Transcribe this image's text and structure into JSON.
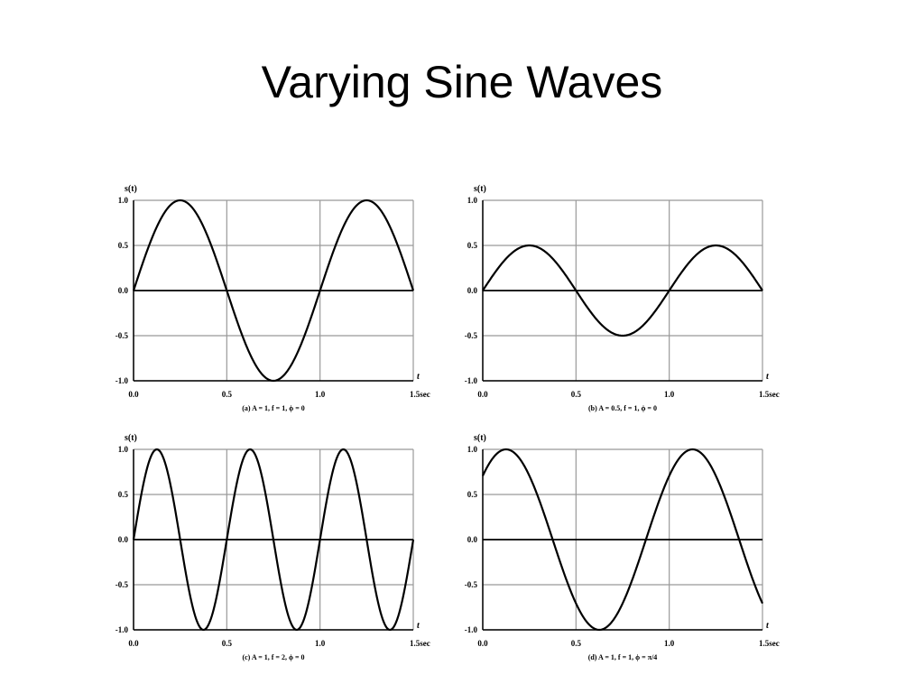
{
  "slide": {
    "title": "Varying Sine Waves"
  },
  "chart_data": [
    {
      "type": "line",
      "title": "",
      "caption": "(a) A = 1, f = 1, ϕ = 0",
      "ylabel": "s(t)",
      "xlabel": "t",
      "function": {
        "A": 1,
        "f": 1,
        "phi": 0
      },
      "xlim": [
        0,
        1.5
      ],
      "ylim": [
        -1,
        1
      ],
      "x_ticks": [
        "0.0",
        "0.5",
        "1.0",
        "1.5sec"
      ],
      "y_ticks": [
        "1.0",
        "0.5",
        "0.0",
        "-0.5",
        "-1.0"
      ],
      "x_tick_values": [
        0,
        0.5,
        1.0,
        1.5
      ],
      "y_tick_values": [
        1,
        0.5,
        0,
        -0.5,
        -1
      ],
      "grid": true
    },
    {
      "type": "line",
      "title": "",
      "caption": "(b) A = 0.5, f = 1, ϕ = 0",
      "ylabel": "s(t)",
      "xlabel": "t",
      "function": {
        "A": 0.5,
        "f": 1,
        "phi": 0
      },
      "xlim": [
        0,
        1.5
      ],
      "ylim": [
        -1,
        1
      ],
      "x_ticks": [
        "0.0",
        "0.5",
        "1.0",
        "1.5sec"
      ],
      "y_ticks": [
        "1.0",
        "0.5",
        "0.0",
        "-0.5",
        "-1.0"
      ],
      "x_tick_values": [
        0,
        0.5,
        1.0,
        1.5
      ],
      "y_tick_values": [
        1,
        0.5,
        0,
        -0.5,
        -1
      ],
      "grid": true
    },
    {
      "type": "line",
      "title": "",
      "caption": "(c) A = 1, f = 2, ϕ = 0",
      "ylabel": "s(t)",
      "xlabel": "t",
      "function": {
        "A": 1,
        "f": 2,
        "phi": 0
      },
      "xlim": [
        0,
        1.5
      ],
      "ylim": [
        -1,
        1
      ],
      "x_ticks": [
        "0.0",
        "0.5",
        "1.0",
        "1.5sec"
      ],
      "y_ticks": [
        "1.0",
        "0.5",
        "0.0",
        "-0.5",
        "-1.0"
      ],
      "x_tick_values": [
        0,
        0.5,
        1.0,
        1.5
      ],
      "y_tick_values": [
        1,
        0.5,
        0,
        -0.5,
        -1
      ],
      "grid": true
    },
    {
      "type": "line",
      "title": "",
      "caption": "(d) A = 1, f = 1, ϕ = π/4",
      "ylabel": "s(t)",
      "xlabel": "t",
      "function": {
        "A": 1,
        "f": 1,
        "phi": 0.7854
      },
      "xlim": [
        0,
        1.5
      ],
      "ylim": [
        -1,
        1
      ],
      "x_ticks": [
        "0.0",
        "0.5",
        "1.0",
        "1.5sec"
      ],
      "y_ticks": [
        "1.0",
        "0.5",
        "0.0",
        "-0.5",
        "-1.0"
      ],
      "x_tick_values": [
        0,
        0.5,
        1.0,
        1.5
      ],
      "y_tick_values": [
        1,
        0.5,
        0,
        -0.5,
        -1
      ],
      "grid": true
    }
  ],
  "colors": {
    "curve": "#000000",
    "grid": "#999999",
    "text": "#000000"
  }
}
